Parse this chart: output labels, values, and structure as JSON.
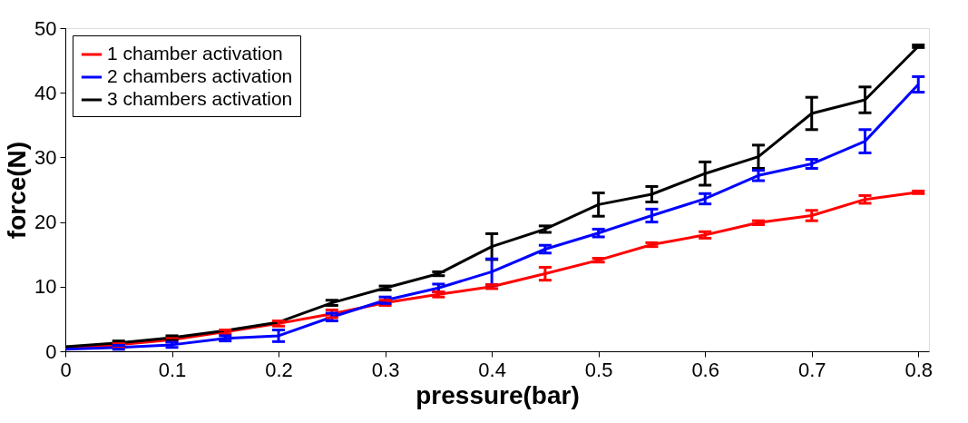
{
  "chart_data": {
    "type": "line",
    "xlabel": "pressure(bar)",
    "ylabel": "force(N)",
    "x": [
      0,
      0.05,
      0.1,
      0.15,
      0.2,
      0.25,
      0.3,
      0.35,
      0.4,
      0.45,
      0.5,
      0.55,
      0.6,
      0.65,
      0.7,
      0.75,
      0.8
    ],
    "series": [
      {
        "name": "1 chamber activation",
        "color": "#ff0000",
        "values": [
          0.5,
          1.0,
          1.8,
          3.0,
          4.3,
          5.8,
          7.5,
          8.8,
          10.0,
          12.0,
          14.1,
          16.5,
          18.0,
          19.9,
          21.0,
          23.5,
          24.6
        ],
        "errors": [
          null,
          0.3,
          0.3,
          0.3,
          0.4,
          0.6,
          0.4,
          0.4,
          0.3,
          1.0,
          0.3,
          0.3,
          0.5,
          0.3,
          0.8,
          0.6,
          0.2
        ]
      },
      {
        "name": "2 chambers activation",
        "color": "#0000ff",
        "values": [
          0.3,
          0.6,
          1.0,
          2.0,
          2.4,
          5.3,
          7.9,
          9.8,
          12.3,
          15.8,
          18.3,
          21.0,
          23.6,
          27.2,
          29.0,
          32.5,
          41.3
        ],
        "errors": [
          null,
          0.3,
          0.4,
          0.4,
          0.9,
          0.6,
          0.5,
          0.6,
          2.0,
          0.6,
          0.6,
          1.0,
          0.8,
          0.8,
          0.7,
          1.8,
          1.2
        ]
      },
      {
        "name": "3 chambers activation",
        "color": "#000000",
        "values": [
          0.7,
          1.3,
          2.1,
          3.2,
          4.5,
          7.5,
          9.8,
          12.0,
          16.2,
          18.9,
          22.7,
          24.3,
          27.5,
          30.1,
          36.8,
          38.9,
          47.2
        ],
        "errors": [
          null,
          0.3,
          0.3,
          null,
          null,
          0.4,
          0.3,
          0.3,
          2.0,
          0.5,
          1.8,
          1.2,
          1.8,
          1.8,
          2.5,
          2.0,
          0.2
        ]
      }
    ],
    "xlim": [
      0,
      0.81
    ],
    "ylim": [
      0,
      50
    ],
    "xticks": [
      0,
      0.1,
      0.2,
      0.3,
      0.4,
      0.5,
      0.6,
      0.7,
      0.8
    ],
    "yticks": [
      0,
      10,
      20,
      30,
      40,
      50
    ],
    "grid": false,
    "legend": "top left",
    "marker": "none",
    "line_style": "solid"
  }
}
